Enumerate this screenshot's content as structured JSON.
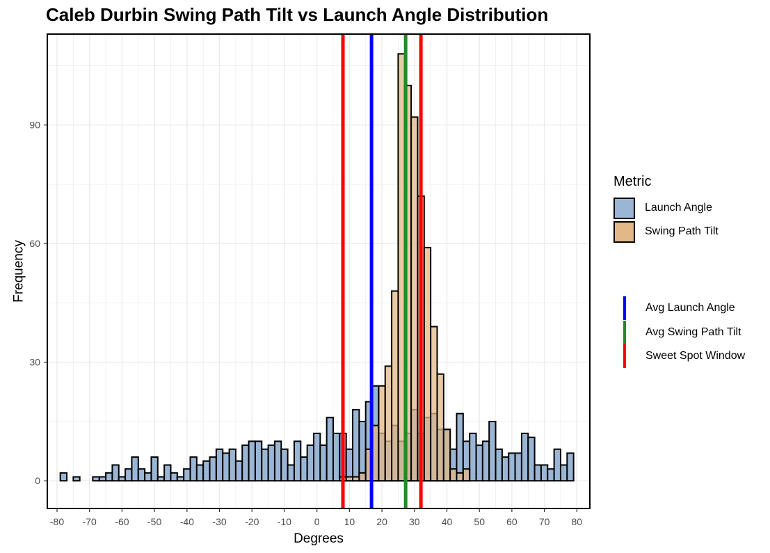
{
  "chart_data": {
    "type": "histogram",
    "title": "Caleb Durbin Swing Path Tilt vs Launch Angle Distribution",
    "xlabel": "Degrees",
    "ylabel": "Frequency",
    "xlim": [
      -83,
      84
    ],
    "ylim": [
      -7,
      113
    ],
    "x_ticks": [
      -80,
      -70,
      -60,
      -50,
      -40,
      -30,
      -20,
      -10,
      0,
      10,
      20,
      30,
      40,
      50,
      60,
      70,
      80
    ],
    "x_tick_labels": [
      "-80",
      "-70",
      "-60",
      "-50",
      "-40",
      "-30",
      "-20",
      "-10",
      "0",
      "10",
      "20",
      "30",
      "40",
      "50",
      "60",
      "70",
      "80"
    ],
    "y_ticks": [
      0,
      30,
      60,
      90
    ],
    "y_tick_labels": [
      "0",
      "30",
      "60",
      "90"
    ],
    "legend_title": "Metric",
    "legend_position": "right",
    "series": [
      {
        "name": "Launch Angle",
        "color": "#9bb5d4",
        "bin_start": -79,
        "bin_width": 2,
        "values": [
          2,
          0,
          1,
          0,
          0,
          1,
          1,
          2,
          4,
          1,
          3,
          6,
          3,
          2,
          6,
          1,
          4,
          2,
          1,
          3,
          6,
          4,
          5,
          6,
          8,
          7,
          8,
          5,
          9,
          10,
          10,
          8,
          9,
          10,
          8,
          4,
          10,
          6,
          9,
          12,
          9,
          16,
          12,
          12,
          8,
          18,
          15,
          20,
          24,
          12,
          10,
          14,
          10,
          12,
          18,
          12,
          16,
          17,
          13,
          13,
          8,
          17,
          10,
          12,
          9,
          10,
          15,
          8,
          6,
          7,
          7,
          12,
          11,
          4,
          4,
          3,
          8,
          4,
          7
        ]
      },
      {
        "name": "Swing Path Tilt",
        "color": "#e3b887",
        "bin_start": 7,
        "bin_width": 2,
        "values": [
          1,
          1,
          1,
          2,
          8,
          14,
          24,
          29,
          48,
          108,
          100,
          92,
          72,
          59,
          39,
          27,
          13,
          3,
          2,
          3
        ]
      }
    ],
    "reference_lines": [
      {
        "name": "Avg Launch Angle",
        "x": 16.8,
        "color": "#0000ff"
      },
      {
        "name": "Avg Swing Path Tilt",
        "x": 27.3,
        "color": "#228b22"
      },
      {
        "name": "Sweet Spot Window",
        "x": 8,
        "color": "#ff0000"
      },
      {
        "name": "Sweet Spot Window",
        "x": 32,
        "color": "#ff0000"
      }
    ],
    "line_legend": [
      {
        "label": "Avg Launch Angle",
        "color": "#0000ff"
      },
      {
        "label": "Avg Swing Path Tilt",
        "color": "#228b22"
      },
      {
        "label": "Sweet Spot Window",
        "color": "#ff0000"
      }
    ]
  }
}
